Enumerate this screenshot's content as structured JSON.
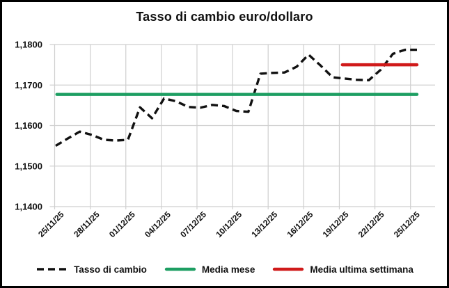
{
  "chart_data": {
    "type": "line",
    "title": "Tasso di cambio euro/dollaro",
    "x_tick_labels": [
      "25/11/25",
      "28/11/25",
      "01/12/25",
      "04/12/25",
      "07/12/25",
      "10/12/25",
      "13/12/25",
      "16/12/25",
      "19/12/25",
      "22/12/25",
      "25/12/25"
    ],
    "y_tick_labels": [
      "1,1800",
      "1,1700",
      "1,1600",
      "1,1500",
      "1,1400"
    ],
    "ylim": [
      1.14,
      1.18
    ],
    "y_step": 0.01,
    "grid": true,
    "legend_position": "bottom",
    "dates": [
      "25/11/25",
      "26/11/25",
      "27/11/25",
      "28/11/25",
      "29/11/25",
      "30/11/25",
      "01/12/25",
      "02/12/25",
      "03/12/25",
      "04/12/25",
      "05/12/25",
      "06/12/25",
      "07/12/25",
      "08/12/25",
      "09/12/25",
      "10/12/25",
      "11/12/25",
      "12/12/25",
      "13/12/25",
      "14/12/25",
      "15/12/25",
      "16/12/25",
      "17/12/25",
      "18/12/25",
      "19/12/25",
      "20/12/25",
      "21/12/25",
      "22/12/25",
      "23/12/25",
      "24/12/25",
      "25/12/25"
    ],
    "series": [
      {
        "name": "Tasso di cambio",
        "style": "dashed",
        "color": "#111111",
        "values": [
          1.155,
          1.1568,
          1.1585,
          1.1577,
          1.1565,
          1.1563,
          1.1565,
          1.1645,
          1.1618,
          1.1667,
          1.166,
          1.1646,
          1.1644,
          1.1651,
          1.1648,
          1.1636,
          1.1634,
          1.1728,
          1.173,
          1.1731,
          1.1745,
          1.1775,
          1.1748,
          1.1719,
          1.1716,
          1.1713,
          1.1712,
          1.1738,
          1.1777,
          1.1787,
          1.1787
        ]
      },
      {
        "name": "Media mese",
        "style": "solid",
        "color": "#1d9e62",
        "value": 1.1677,
        "x_start_day": 0.1,
        "x_end_day": 30.0
      },
      {
        "name": "Media ultima settimana",
        "style": "solid",
        "color": "#d01a1a",
        "value": 1.175,
        "x_start_day": 23.8,
        "x_end_day": 30.0
      }
    ]
  },
  "colors": {
    "grid": "#cfcfcf",
    "text": "#111111",
    "background": "#ffffff",
    "border": "#000000"
  }
}
